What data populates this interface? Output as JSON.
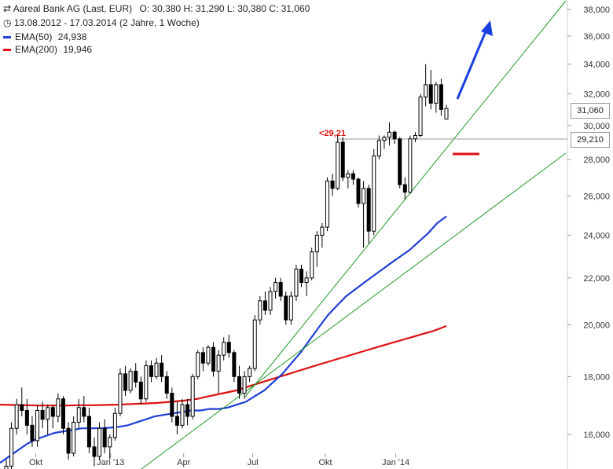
{
  "header": {
    "title": "Aareal Bank AG (Last, EUR)",
    "ohlc": "O: 30,380  H: 31,290  L: 30,380  C: 31,060",
    "range": "13.08.2012 - 17.03.2014 (2 Jahre, 1 Woche)",
    "ema50_label": "EMA(50)",
    "ema50_value": "24,938",
    "ema200_label": "EMA(200)",
    "ema200_value": "19,946"
  },
  "price_tags": {
    "last": "31,060",
    "level": "29,210",
    "level_annotation": "<29,21"
  },
  "colors": {
    "candle": "#000000",
    "ema50": "#1f3fd6",
    "ema200": "#e01010",
    "trendline": "#22992a",
    "arrow": "#1a40e0",
    "level_line": "#999999"
  },
  "chart_data": {
    "type": "candlestick",
    "y_scale": "log",
    "y_ticks": [
      "16,000",
      "18,000",
      "20,000",
      "22,000",
      "24,000",
      "26,000",
      "28,000",
      "30,000",
      "32,000",
      "34,000",
      "36,000",
      "38,000"
    ],
    "x_ticks": [
      "Okt",
      "Jan '13",
      "Apr",
      "Jul",
      "Okt",
      "Jan '14"
    ],
    "ohlc": [
      [
        14.8,
        15.2,
        14.5,
        15.0
      ],
      [
        15.0,
        16.4,
        14.8,
        16.2
      ],
      [
        16.2,
        17.2,
        16.0,
        17.0
      ],
      [
        17.0,
        17.6,
        16.6,
        16.8
      ],
      [
        16.8,
        17.2,
        16.0,
        16.3
      ],
      [
        16.3,
        16.6,
        15.6,
        15.8
      ],
      [
        15.8,
        17.0,
        15.6,
        16.8
      ],
      [
        16.8,
        17.1,
        16.2,
        16.5
      ],
      [
        16.5,
        17.0,
        16.0,
        16.9
      ],
      [
        16.9,
        17.0,
        16.2,
        16.6
      ],
      [
        16.6,
        17.4,
        16.4,
        17.2
      ],
      [
        17.2,
        17.3,
        16.0,
        16.2
      ],
      [
        16.2,
        16.4,
        15.2,
        15.4
      ],
      [
        15.4,
        16.6,
        15.3,
        16.4
      ],
      [
        16.4,
        17.2,
        16.2,
        16.9
      ],
      [
        16.9,
        17.3,
        16.4,
        16.6
      ],
      [
        16.6,
        16.9,
        15.4,
        15.6
      ],
      [
        15.6,
        15.9,
        15.0,
        15.3
      ],
      [
        15.3,
        16.4,
        15.2,
        16.2
      ],
      [
        16.2,
        16.5,
        15.4,
        15.6
      ],
      [
        15.6,
        16.0,
        15.2,
        15.9
      ],
      [
        15.9,
        16.9,
        15.8,
        16.7
      ],
      [
        16.7,
        18.3,
        16.6,
        18.1
      ],
      [
        18.1,
        18.4,
        17.3,
        17.5
      ],
      [
        17.5,
        18.3,
        17.4,
        18.2
      ],
      [
        18.2,
        18.5,
        17.6,
        17.8
      ],
      [
        17.8,
        18.0,
        17.0,
        17.2
      ],
      [
        17.2,
        18.6,
        17.1,
        18.4
      ],
      [
        18.4,
        18.6,
        17.8,
        18.0
      ],
      [
        18.0,
        18.7,
        17.9,
        18.5
      ],
      [
        18.5,
        18.8,
        17.8,
        18.0
      ],
      [
        18.0,
        18.2,
        17.2,
        17.4
      ],
      [
        17.4,
        17.6,
        16.4,
        16.6
      ],
      [
        16.6,
        17.1,
        16.0,
        16.3
      ],
      [
        16.3,
        17.2,
        16.2,
        17.0
      ],
      [
        17.0,
        17.2,
        16.3,
        16.6
      ],
      [
        16.6,
        18.1,
        16.5,
        18.0
      ],
      [
        18.0,
        19.0,
        17.9,
        18.9
      ],
      [
        18.9,
        19.1,
        18.2,
        18.5
      ],
      [
        18.5,
        19.2,
        18.4,
        19.1
      ],
      [
        19.1,
        19.3,
        18.0,
        18.2
      ],
      [
        18.2,
        19.0,
        17.4,
        18.8
      ],
      [
        18.8,
        19.5,
        18.6,
        19.3
      ],
      [
        19.3,
        19.6,
        18.7,
        18.9
      ],
      [
        18.9,
        19.0,
        17.8,
        18.0
      ],
      [
        18.0,
        18.4,
        17.2,
        17.4
      ],
      [
        17.4,
        18.2,
        17.2,
        18.0
      ],
      [
        18.0,
        18.4,
        17.8,
        18.3
      ],
      [
        18.3,
        20.4,
        18.2,
        20.2
      ],
      [
        20.2,
        21.2,
        20.0,
        21.0
      ],
      [
        21.0,
        21.4,
        20.4,
        20.6
      ],
      [
        20.6,
        21.6,
        20.4,
        21.4
      ],
      [
        21.4,
        22.0,
        21.1,
        21.8
      ],
      [
        21.8,
        22.0,
        21.0,
        21.2
      ],
      [
        21.2,
        21.4,
        20.0,
        20.2
      ],
      [
        20.2,
        21.4,
        20.0,
        21.2
      ],
      [
        21.2,
        22.6,
        21.0,
        22.4
      ],
      [
        22.4,
        22.6,
        21.6,
        21.8
      ],
      [
        21.8,
        22.3,
        21.2,
        22.0
      ],
      [
        22.0,
        23.4,
        21.9,
        23.2
      ],
      [
        23.2,
        24.2,
        22.5,
        24.0
      ],
      [
        24.0,
        24.6,
        23.4,
        24.4
      ],
      [
        24.4,
        27.0,
        24.2,
        26.8
      ],
      [
        26.8,
        27.2,
        26.0,
        26.4
      ],
      [
        26.4,
        29.4,
        26.3,
        29.0
      ],
      [
        29.0,
        29.3,
        26.8,
        27.0
      ],
      [
        27.0,
        27.4,
        26.4,
        27.2
      ],
      [
        27.2,
        27.4,
        26.6,
        26.9
      ],
      [
        26.9,
        27.0,
        25.4,
        25.6
      ],
      [
        25.6,
        26.8,
        23.4,
        26.4
      ],
      [
        26.4,
        26.6,
        23.6,
        24.2
      ],
      [
        24.2,
        28.6,
        24.0,
        28.2
      ],
      [
        28.2,
        29.4,
        28.0,
        29.1
      ],
      [
        29.1,
        29.4,
        28.6,
        29.3
      ],
      [
        29.3,
        30.2,
        28.8,
        29.6
      ],
      [
        29.6,
        29.7,
        28.9,
        29.2
      ],
      [
        29.2,
        29.3,
        26.4,
        26.6
      ],
      [
        26.6,
        27.0,
        25.8,
        26.2
      ],
      [
        26.2,
        29.4,
        26.1,
        29.2
      ],
      [
        29.2,
        29.6,
        29.0,
        29.4
      ],
      [
        29.4,
        32.0,
        29.3,
        31.8
      ],
      [
        31.8,
        34.0,
        31.2,
        32.6
      ],
      [
        32.6,
        33.6,
        31.0,
        31.4
      ],
      [
        31.4,
        32.8,
        30.8,
        32.6
      ],
      [
        32.6,
        33.0,
        30.6,
        31.0
      ],
      [
        30.4,
        31.3,
        30.4,
        31.06
      ]
    ],
    "ema50": [
      15.1,
      15.3,
      15.5,
      15.7,
      15.85,
      15.95,
      16.05,
      16.1,
      16.15,
      16.2,
      16.2,
      16.2,
      16.22,
      16.25,
      16.3,
      16.4,
      16.5,
      16.6,
      16.65,
      16.7,
      16.75,
      16.8,
      16.8,
      16.85,
      16.85,
      16.9,
      17.0,
      17.1,
      17.3,
      17.5,
      17.8,
      18.1,
      18.5,
      18.9,
      19.4,
      19.9,
      20.4,
      20.8,
      21.2,
      21.5,
      21.8,
      22.1,
      22.4,
      22.7,
      23.0,
      23.3,
      23.7,
      24.1,
      24.6,
      24.94
    ],
    "ema200": [
      17.0,
      16.99,
      16.98,
      16.97,
      16.97,
      16.97,
      16.98,
      16.98,
      16.99,
      17.0,
      17.02,
      17.04,
      17.06,
      17.1,
      17.14,
      17.2,
      17.3,
      17.4,
      17.5,
      17.65,
      17.8,
      17.95,
      18.1,
      18.25,
      18.4,
      18.55,
      18.7,
      18.85,
      19.0,
      19.15,
      19.3,
      19.45,
      19.6,
      19.75,
      19.95
    ],
    "support_level": 29.21
  }
}
